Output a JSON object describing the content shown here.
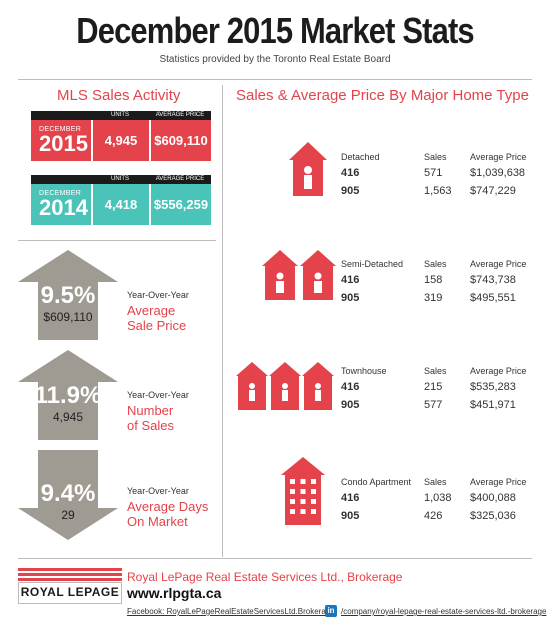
{
  "header": {
    "title": "December 2015 Market Stats",
    "subtitle": "Statistics provided by the Toronto Real Estate Board"
  },
  "mls": {
    "heading": "MLS Sales Activity",
    "col_units": "UNITS",
    "col_price": "AVERAGE PRICE",
    "rows": [
      {
        "month": "DECEMBER",
        "year": "2015",
        "units": "4,945",
        "price": "$609,110",
        "color": "#e4434b"
      },
      {
        "month": "DECEMBER",
        "year": "2014",
        "units": "4,418",
        "price": "$556,259",
        "color": "#4ac3b8"
      }
    ]
  },
  "yoy": [
    {
      "direction": "up",
      "pct": "9.5%",
      "value": "$609,110",
      "label": "Year-Over-Year",
      "metric_l1": "Average",
      "metric_l2": "Sale Price",
      "color": "#9f9a92"
    },
    {
      "direction": "up",
      "pct": "11.9%",
      "value": "4,945",
      "label": "Year-Over-Year",
      "metric_l1": "Number",
      "metric_l2": "of Sales",
      "color": "#9f9a92"
    },
    {
      "direction": "down",
      "pct": "9.4%",
      "value": "29",
      "label": "Year-Over-Year",
      "metric_l1": "Average Days",
      "metric_l2": "On Market",
      "color": "#9f9a92"
    }
  ],
  "home_types": {
    "heading": "Sales & Average Price By Major Home Type",
    "col_sales": "Sales",
    "col_price": "Average Price",
    "types": [
      {
        "name": "Detached",
        "icon": "detached-house-icon",
        "rows": [
          {
            "area": "416",
            "sales": "571",
            "price": "$1,039,638"
          },
          {
            "area": "905",
            "sales": "1,563",
            "price": "$747,229"
          }
        ]
      },
      {
        "name": "Semi-Detached",
        "icon": "semi-detached-house-icon",
        "rows": [
          {
            "area": "416",
            "sales": "158",
            "price": "$743,738"
          },
          {
            "area": "905",
            "sales": "319",
            "price": "$495,551"
          }
        ]
      },
      {
        "name": "Townhouse",
        "icon": "townhouse-icon",
        "rows": [
          {
            "area": "416",
            "sales": "215",
            "price": "$535,283"
          },
          {
            "area": "905",
            "sales": "577",
            "price": "$451,971"
          }
        ]
      },
      {
        "name": "Condo Apartment",
        "icon": "condo-apartment-icon",
        "rows": [
          {
            "area": "416",
            "sales": "1,038",
            "price": "$400,088"
          },
          {
            "area": "905",
            "sales": "426",
            "price": "$325,036"
          }
        ]
      }
    ]
  },
  "footer": {
    "logo": "ROYAL LEPAGE",
    "brokerage": "Royal LePage Real Estate Services Ltd., Brokerage",
    "url": "www.rlpgta.ca",
    "facebook": "Facebook: RoyalLePageRealEstateServicesLtd.Brokerage",
    "linkedin": "/company/royal-lepage-real-estate-services-ltd.-brokerage",
    "accent": "#e4434b"
  }
}
